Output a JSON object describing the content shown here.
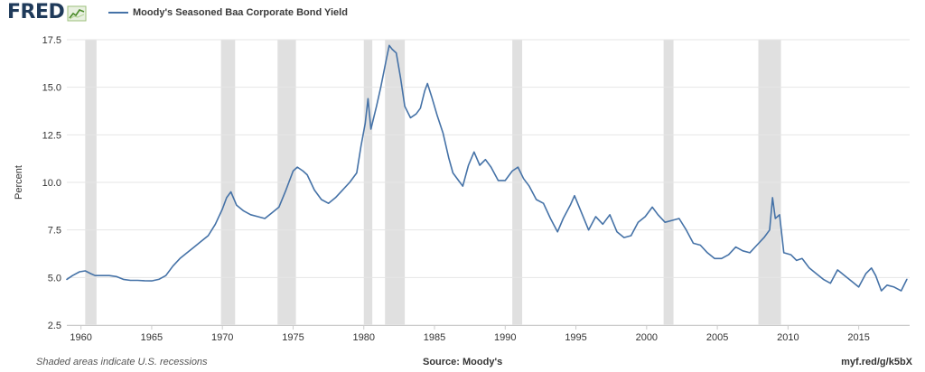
{
  "header": {
    "logo_text": "FRED",
    "logo_icon": "line-chart-icon",
    "legend_label": "Moody's Seasoned Baa Corporate Bond Yield"
  },
  "footer": {
    "note": "Shaded areas indicate U.S. recessions",
    "source": "Source: Moody's",
    "url": "myf.red/g/k5bX"
  },
  "colors": {
    "series": "#4572a7",
    "recession": "#e0e0e0",
    "grid": "#e6e6e6",
    "logo": "#1f3a5a"
  },
  "chart_data": {
    "type": "line",
    "title": "",
    "xlabel": "",
    "ylabel": "Percent",
    "xlim": [
      1959,
      2018.6
    ],
    "ylim": [
      2.5,
      17.5
    ],
    "grid": true,
    "legend": "top-left",
    "x_ticks": [
      "1960",
      "1965",
      "1970",
      "1975",
      "1980",
      "1985",
      "1990",
      "1995",
      "2000",
      "2005",
      "2010",
      "2015"
    ],
    "y_ticks": [
      "2.5",
      "5.0",
      "7.5",
      "10.0",
      "12.5",
      "15.0",
      "17.5"
    ],
    "recessions": [
      [
        1960.3,
        1961.1
      ],
      [
        1969.9,
        1970.9
      ],
      [
        1973.9,
        1975.2
      ],
      [
        1980.0,
        1980.6
      ],
      [
        1981.5,
        1982.9
      ],
      [
        1990.5,
        1991.2
      ],
      [
        2001.2,
        2001.9
      ],
      [
        2007.9,
        2009.5
      ]
    ],
    "series": [
      {
        "name": "Moody's Seasoned Baa Corporate Bond Yield",
        "points": [
          [
            1959.0,
            4.9
          ],
          [
            1959.4,
            5.1
          ],
          [
            1959.9,
            5.3
          ],
          [
            1960.3,
            5.35
          ],
          [
            1960.7,
            5.2
          ],
          [
            1961.0,
            5.1
          ],
          [
            1961.5,
            5.1
          ],
          [
            1962.0,
            5.1
          ],
          [
            1962.5,
            5.05
          ],
          [
            1963.0,
            4.9
          ],
          [
            1963.5,
            4.85
          ],
          [
            1964.0,
            4.85
          ],
          [
            1964.5,
            4.83
          ],
          [
            1965.0,
            4.82
          ],
          [
            1965.5,
            4.9
          ],
          [
            1966.0,
            5.1
          ],
          [
            1966.5,
            5.6
          ],
          [
            1967.0,
            6.0
          ],
          [
            1967.5,
            6.3
          ],
          [
            1968.0,
            6.6
          ],
          [
            1968.5,
            6.9
          ],
          [
            1969.0,
            7.2
          ],
          [
            1969.5,
            7.8
          ],
          [
            1970.0,
            8.6
          ],
          [
            1970.3,
            9.2
          ],
          [
            1970.6,
            9.5
          ],
          [
            1971.0,
            8.8
          ],
          [
            1971.5,
            8.5
          ],
          [
            1972.0,
            8.3
          ],
          [
            1972.5,
            8.2
          ],
          [
            1973.0,
            8.1
          ],
          [
            1973.5,
            8.4
          ],
          [
            1974.0,
            8.7
          ],
          [
            1974.5,
            9.6
          ],
          [
            1975.0,
            10.6
          ],
          [
            1975.3,
            10.8
          ],
          [
            1975.7,
            10.6
          ],
          [
            1976.0,
            10.4
          ],
          [
            1976.5,
            9.6
          ],
          [
            1977.0,
            9.1
          ],
          [
            1977.5,
            8.9
          ],
          [
            1978.0,
            9.2
          ],
          [
            1978.5,
            9.6
          ],
          [
            1979.0,
            10.0
          ],
          [
            1979.5,
            10.5
          ],
          [
            1979.8,
            11.9
          ],
          [
            1980.1,
            13.1
          ],
          [
            1980.3,
            14.4
          ],
          [
            1980.5,
            12.8
          ],
          [
            1980.9,
            14.0
          ],
          [
            1981.2,
            15.0
          ],
          [
            1981.6,
            16.5
          ],
          [
            1981.8,
            17.2
          ],
          [
            1982.0,
            17.0
          ],
          [
            1982.3,
            16.8
          ],
          [
            1982.6,
            15.5
          ],
          [
            1982.9,
            14.0
          ],
          [
            1983.3,
            13.4
          ],
          [
            1983.7,
            13.6
          ],
          [
            1984.0,
            13.9
          ],
          [
            1984.3,
            14.8
          ],
          [
            1984.5,
            15.2
          ],
          [
            1984.8,
            14.5
          ],
          [
            1985.2,
            13.5
          ],
          [
            1985.6,
            12.6
          ],
          [
            1986.0,
            11.3
          ],
          [
            1986.3,
            10.5
          ],
          [
            1986.7,
            10.1
          ],
          [
            1987.0,
            9.8
          ],
          [
            1987.4,
            10.9
          ],
          [
            1987.8,
            11.6
          ],
          [
            1988.2,
            10.9
          ],
          [
            1988.6,
            11.2
          ],
          [
            1989.0,
            10.8
          ],
          [
            1989.5,
            10.1
          ],
          [
            1990.0,
            10.1
          ],
          [
            1990.5,
            10.6
          ],
          [
            1990.9,
            10.8
          ],
          [
            1991.3,
            10.2
          ],
          [
            1991.7,
            9.8
          ],
          [
            1992.2,
            9.1
          ],
          [
            1992.7,
            8.9
          ],
          [
            1993.2,
            8.1
          ],
          [
            1993.7,
            7.4
          ],
          [
            1994.1,
            8.1
          ],
          [
            1994.6,
            8.8
          ],
          [
            1994.9,
            9.3
          ],
          [
            1995.4,
            8.4
          ],
          [
            1995.9,
            7.5
          ],
          [
            1996.4,
            8.2
          ],
          [
            1996.9,
            7.8
          ],
          [
            1997.4,
            8.3
          ],
          [
            1997.9,
            7.4
          ],
          [
            1998.4,
            7.1
          ],
          [
            1998.9,
            7.2
          ],
          [
            1999.4,
            7.9
          ],
          [
            1999.9,
            8.2
          ],
          [
            2000.4,
            8.7
          ],
          [
            2000.8,
            8.3
          ],
          [
            2001.3,
            7.9
          ],
          [
            2001.8,
            8.0
          ],
          [
            2002.3,
            8.1
          ],
          [
            2002.8,
            7.5
          ],
          [
            2003.3,
            6.8
          ],
          [
            2003.8,
            6.7
          ],
          [
            2004.3,
            6.3
          ],
          [
            2004.8,
            6.0
          ],
          [
            2005.3,
            6.0
          ],
          [
            2005.8,
            6.2
          ],
          [
            2006.3,
            6.6
          ],
          [
            2006.8,
            6.4
          ],
          [
            2007.3,
            6.3
          ],
          [
            2007.8,
            6.7
          ],
          [
            2008.3,
            7.1
          ],
          [
            2008.7,
            7.5
          ],
          [
            2008.9,
            9.2
          ],
          [
            2009.1,
            8.1
          ],
          [
            2009.4,
            8.3
          ],
          [
            2009.7,
            6.3
          ],
          [
            2010.2,
            6.2
          ],
          [
            2010.6,
            5.9
          ],
          [
            2011.0,
            6.0
          ],
          [
            2011.5,
            5.5
          ],
          [
            2012.0,
            5.2
          ],
          [
            2012.5,
            4.9
          ],
          [
            2013.0,
            4.7
          ],
          [
            2013.5,
            5.4
          ],
          [
            2014.0,
            5.1
          ],
          [
            2014.5,
            4.8
          ],
          [
            2015.0,
            4.5
          ],
          [
            2015.5,
            5.2
          ],
          [
            2015.9,
            5.5
          ],
          [
            2016.2,
            5.1
          ],
          [
            2016.6,
            4.3
          ],
          [
            2017.0,
            4.6
          ],
          [
            2017.5,
            4.5
          ],
          [
            2018.0,
            4.3
          ],
          [
            2018.4,
            4.9
          ]
        ]
      }
    ]
  }
}
